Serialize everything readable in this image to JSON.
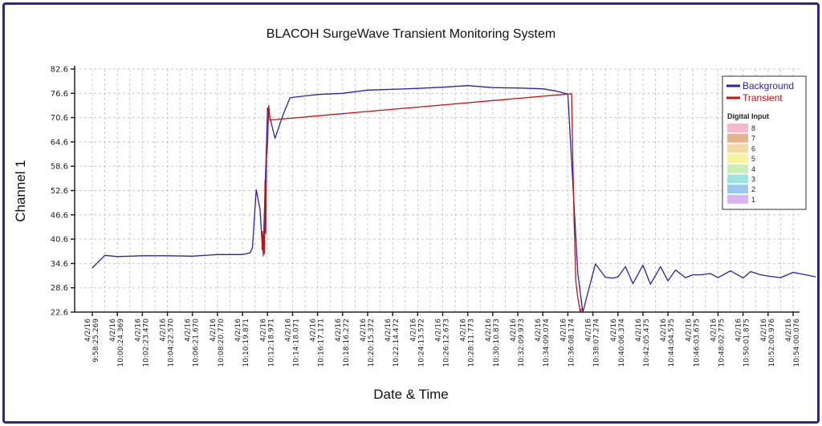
{
  "chart_data": {
    "type": "line",
    "title": "BLACOH SurgeWave Transient Monitoring System",
    "xlabel": "Date & Time",
    "ylabel": "Channel 1",
    "ylim": [
      22.6,
      82.6
    ],
    "yticks": [
      22.6,
      28.6,
      34.6,
      40.6,
      46.6,
      52.6,
      58.6,
      64.6,
      70.6,
      76.6,
      82.6
    ],
    "xticks": [
      "4/2/16 9:58:25.269",
      "4/2/16 10:00:24.369",
      "4/2/16 10:02:23.470",
      "4/2/16 10:04:22.570",
      "4/2/16 10:06:21.670",
      "4/2/16 10:08:20.770",
      "4/2/16 10:10:19.871",
      "4/2/16 10:12:18.971",
      "4/2/16 10:14:18.071",
      "4/2/16 10:16:17.171",
      "4/2/16 10:18:16.272",
      "4/2/16 10:20:15.372",
      "4/2/16 10:22:14.472",
      "4/2/16 10:24:13.572",
      "4/2/16 10:26:12.673",
      "4/2/16 10:28:11.773",
      "4/2/16 10:30:10.873",
      "4/2/16 10:32:09.973",
      "4/2/16 10:34:09.074",
      "4/2/16 10:36:08.174",
      "4/2/16 10:38:07.274",
      "4/2/16 10:40:06.374",
      "4/2/16 10:42:05.475",
      "4/2/16 10:44:04.575",
      "4/2/16 10:46:03.675",
      "4/2/16 10:48:02.775",
      "4/2/16 10:50:01.875",
      "4/2/16 10:52:00.976",
      "4/2/16 10:54:00.076"
    ],
    "grid": true,
    "legend_position": "top-right",
    "series": [
      {
        "name": "Background",
        "color": "#2b1fb5",
        "x": [
          0,
          0.5,
          1,
          2,
          3,
          4,
          5,
          6,
          6.3,
          6.4,
          6.55,
          6.7,
          6.8,
          6.85,
          7,
          7.3,
          7.6,
          7.9,
          8,
          9,
          10,
          11,
          12,
          13,
          14,
          15,
          16,
          17,
          18,
          18.5,
          19,
          19.4,
          19.6,
          19.7,
          20.1,
          20.5,
          20.8,
          21,
          21.3,
          21.6,
          22,
          22.3,
          22.7,
          23,
          23.3,
          23.7,
          24,
          24.3,
          24.7,
          25,
          25.5,
          26,
          26.3,
          26.7,
          27,
          27.5,
          28,
          28.5,
          28.9
        ],
        "y": [
          33.5,
          36.6,
          36.3,
          36.5,
          36.5,
          36.4,
          36.8,
          36.8,
          37.2,
          38.5,
          52.8,
          48,
          38,
          42,
          73,
          65.5,
          71,
          75.5,
          75.6,
          76.3,
          76.6,
          77.4,
          77.6,
          77.8,
          78.1,
          78.5,
          78,
          77.9,
          77.7,
          77.2,
          76.4,
          32,
          22.5,
          25,
          34.5,
          31.2,
          31,
          31.3,
          33.8,
          29.6,
          34.2,
          29.5,
          33.8,
          30.3,
          33,
          31.1,
          31.8,
          31.8,
          32.1,
          31.1,
          32.8,
          31,
          32.6,
          31.8,
          31.5,
          31.1,
          32.4,
          31.8,
          31.3
        ]
      },
      {
        "name": "Transient",
        "color": "#c41010",
        "x": [
          6.78,
          6.8,
          6.83,
          6.86,
          6.88,
          6.9,
          6.93,
          6.96,
          7,
          7.05,
          7.1,
          19.15,
          19.2,
          19.25,
          19.32,
          19.4,
          19.5,
          19.55
        ],
        "y": [
          38,
          42.5,
          36.5,
          43,
          37,
          55,
          42,
          61,
          64,
          73.6,
          70,
          76.5,
          60,
          45,
          30,
          26,
          22.5,
          23.5
        ]
      }
    ],
    "digital_input": {
      "title": "Digital Input",
      "items": [
        {
          "label": "8",
          "color": "#f7b8cc"
        },
        {
          "label": "7",
          "color": "#e3b48a"
        },
        {
          "label": "6",
          "color": "#f4d9a3"
        },
        {
          "label": "5",
          "color": "#f6f39e"
        },
        {
          "label": "4",
          "color": "#c6f0b8"
        },
        {
          "label": "3",
          "color": "#9fe3e0"
        },
        {
          "label": "2",
          "color": "#9ec7f0"
        },
        {
          "label": "1",
          "color": "#d9b6f0"
        }
      ]
    }
  }
}
